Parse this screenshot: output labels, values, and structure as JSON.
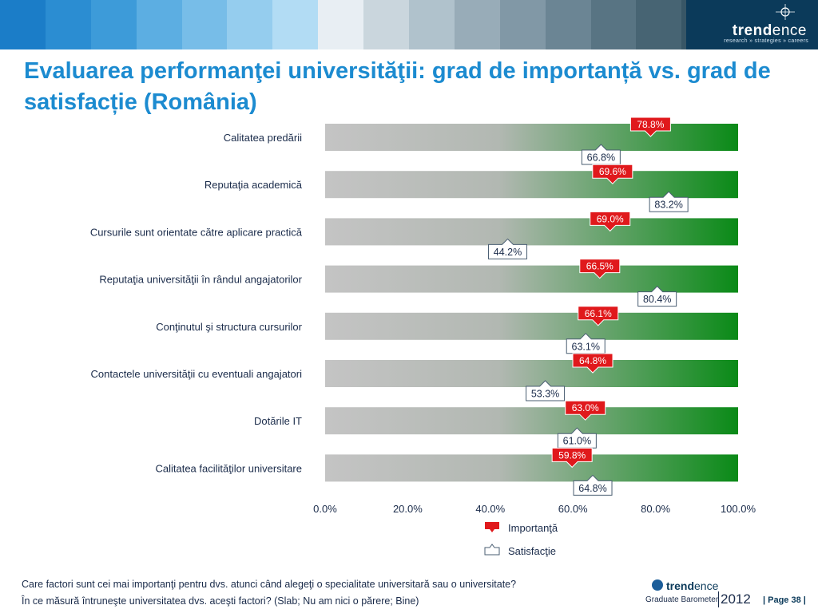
{
  "header": {
    "logo": {
      "brand_prefix": "trend",
      "brand_suffix": "ence",
      "tagline": "research » strategies » careers"
    },
    "strip_colors": [
      "#1b7dc8",
      "#2b8dd2",
      "#3d9bd9",
      "#5caee2",
      "#77bde8",
      "#95cdee",
      "#b2dcf4",
      "#e8eef3",
      "#cad6dd",
      "#b0c2cc",
      "#98acb8",
      "#8198a6",
      "#6b8594",
      "#587483",
      "#476473",
      "#385666",
      "#2c4b5c",
      "#0b3a5a"
    ]
  },
  "title": "Evaluarea performanţei universităţii: grad de importanță vs. grad de satisfacție (România)",
  "chart_data": {
    "type": "bar",
    "orientation": "horizontal",
    "categories": [
      "Calitatea predării",
      "Reputaţia academică",
      "Cursurile sunt orientate către aplicare practică",
      "Reputaţia universităţii în rândul angajatorilor",
      "Conţinutul şi structura cursurilor",
      "Contactele universităţii cu eventuali angajatori",
      "Dotările IT",
      "Calitatea facilităţilor universitare"
    ],
    "series": [
      {
        "name": "Importanţă",
        "values": [
          78.8,
          69.6,
          69.0,
          66.5,
          66.1,
          64.8,
          63.0,
          59.8
        ],
        "color": "#e0191c"
      },
      {
        "name": "Satisfacţie",
        "values": [
          66.8,
          83.2,
          44.2,
          80.4,
          63.1,
          53.3,
          61.0,
          64.8
        ],
        "color": "#ffffff"
      }
    ],
    "value_labels_importance": [
      "78.8%",
      "69.6%",
      "69.0%",
      "66.5%",
      "66.1%",
      "64.8%",
      "63.0%",
      "59.8%"
    ],
    "value_labels_satisfaction": [
      "66.8%",
      "83.2%",
      "44.2%",
      "80.4%",
      "63.1%",
      "53.3%",
      "61.0%",
      "64.8%"
    ],
    "x_ticks": [
      "0.0%",
      "20.0%",
      "40.0%",
      "60.0%",
      "80.0%",
      "100.0%"
    ],
    "xlim": [
      0,
      100
    ],
    "bar_gradient": [
      "#c4c4c4",
      "#0a8a17"
    ],
    "legend_position": "bottom-center",
    "grid": false
  },
  "footnote": {
    "line1": "Care factori sunt cei mai importanţi pentru dvs. atunci când alegeţi o specialitate universitară sau o universitate?",
    "line2": "În ce măsură întruneşte universitatea dvs. aceşti factori? (Slab; Nu am nici o părere; Bine)"
  },
  "footer": {
    "brand_prefix": "trend",
    "brand_suffix": "ence",
    "subtitle": "Graduate Barometer",
    "year": "2012",
    "page_label": "| Page 38 |"
  }
}
